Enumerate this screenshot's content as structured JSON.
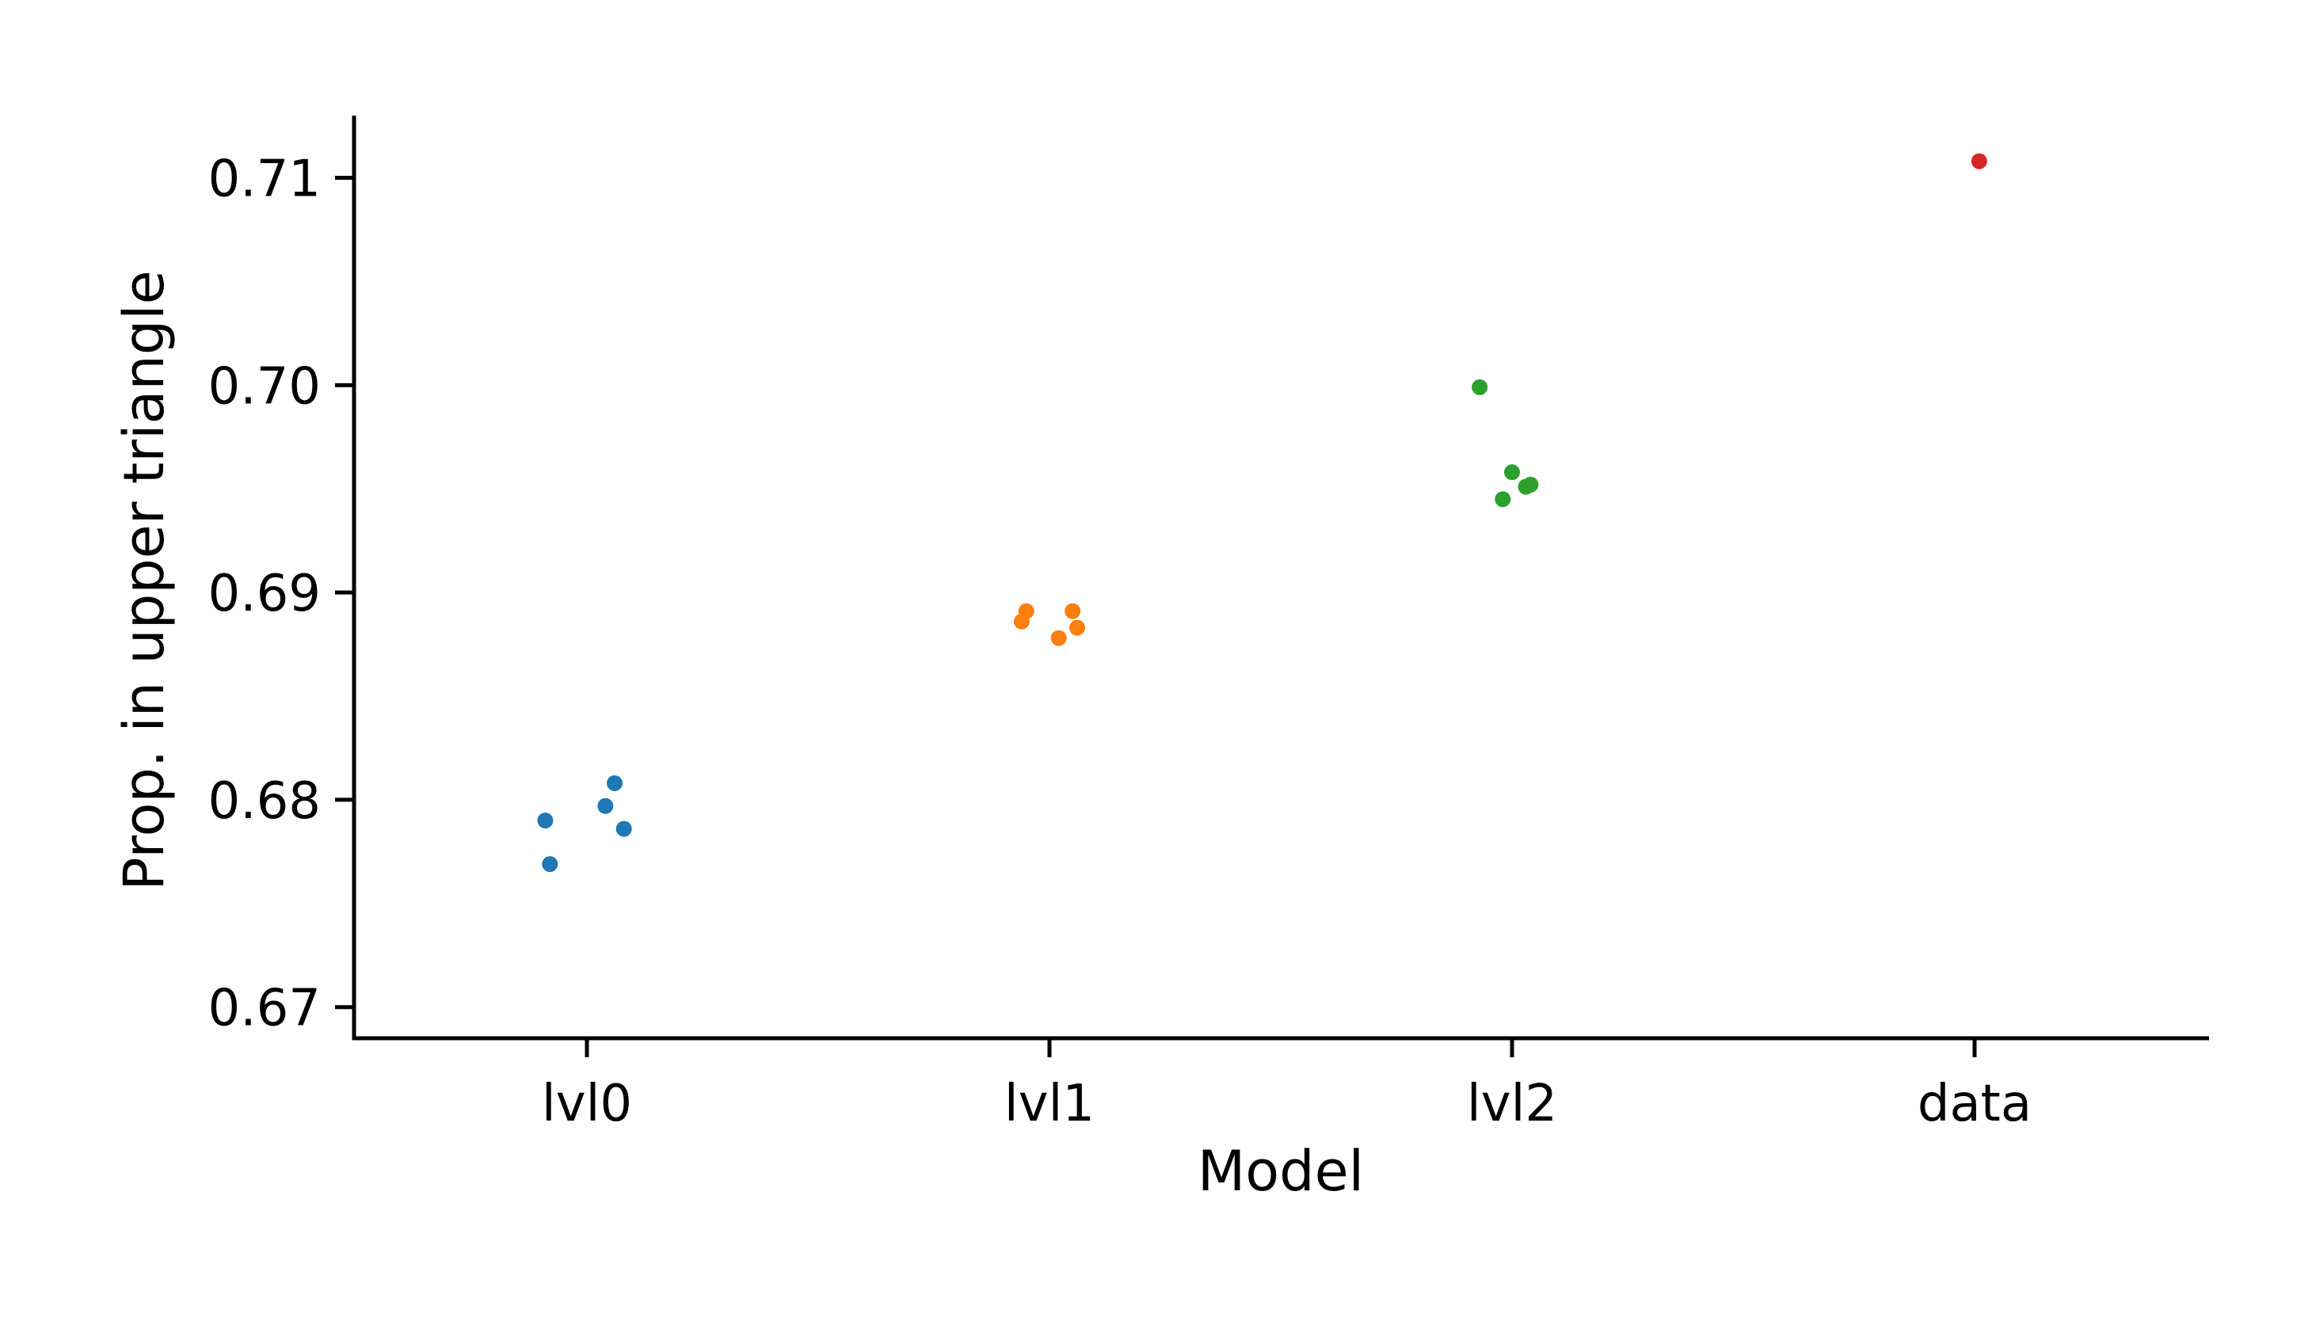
{
  "chart_data": {
    "type": "scatter",
    "title": "",
    "xlabel": "Model",
    "ylabel": "Prop. in upper triangle",
    "categories": [
      "lvl0",
      "lvl1",
      "lvl2",
      "data"
    ],
    "ylim": [
      0.6685,
      0.713
    ],
    "yticks": [
      "0.67",
      "0.68",
      "0.69",
      "0.70",
      "0.71"
    ],
    "grid": false,
    "legend": "none",
    "series": [
      {
        "category": "lvl0",
        "color": "#1f77b4",
        "points": [
          {
            "x": -0.09,
            "y": 0.679
          },
          {
            "x": -0.08,
            "y": 0.6769
          },
          {
            "x": 0.04,
            "y": 0.6797
          },
          {
            "x": 0.06,
            "y": 0.6808
          },
          {
            "x": 0.08,
            "y": 0.6786
          }
        ]
      },
      {
        "category": "lvl1",
        "color": "#ff7f0e",
        "points": [
          {
            "x": -0.06,
            "y": 0.6886
          },
          {
            "x": -0.05,
            "y": 0.6891
          },
          {
            "x": 0.02,
            "y": 0.6878
          },
          {
            "x": 0.05,
            "y": 0.6891
          },
          {
            "x": 0.06,
            "y": 0.6883
          }
        ]
      },
      {
        "category": "lvl2",
        "color": "#2ca02c",
        "points": [
          {
            "x": -0.07,
            "y": 0.6999
          },
          {
            "x": -0.02,
            "y": 0.6945
          },
          {
            "x": 0.0,
            "y": 0.6958
          },
          {
            "x": 0.03,
            "y": 0.6951
          },
          {
            "x": 0.04,
            "y": 0.6952
          }
        ]
      },
      {
        "category": "data",
        "color": "#d62728",
        "points": [
          {
            "x": 0.01,
            "y": 0.7108
          }
        ]
      }
    ]
  }
}
